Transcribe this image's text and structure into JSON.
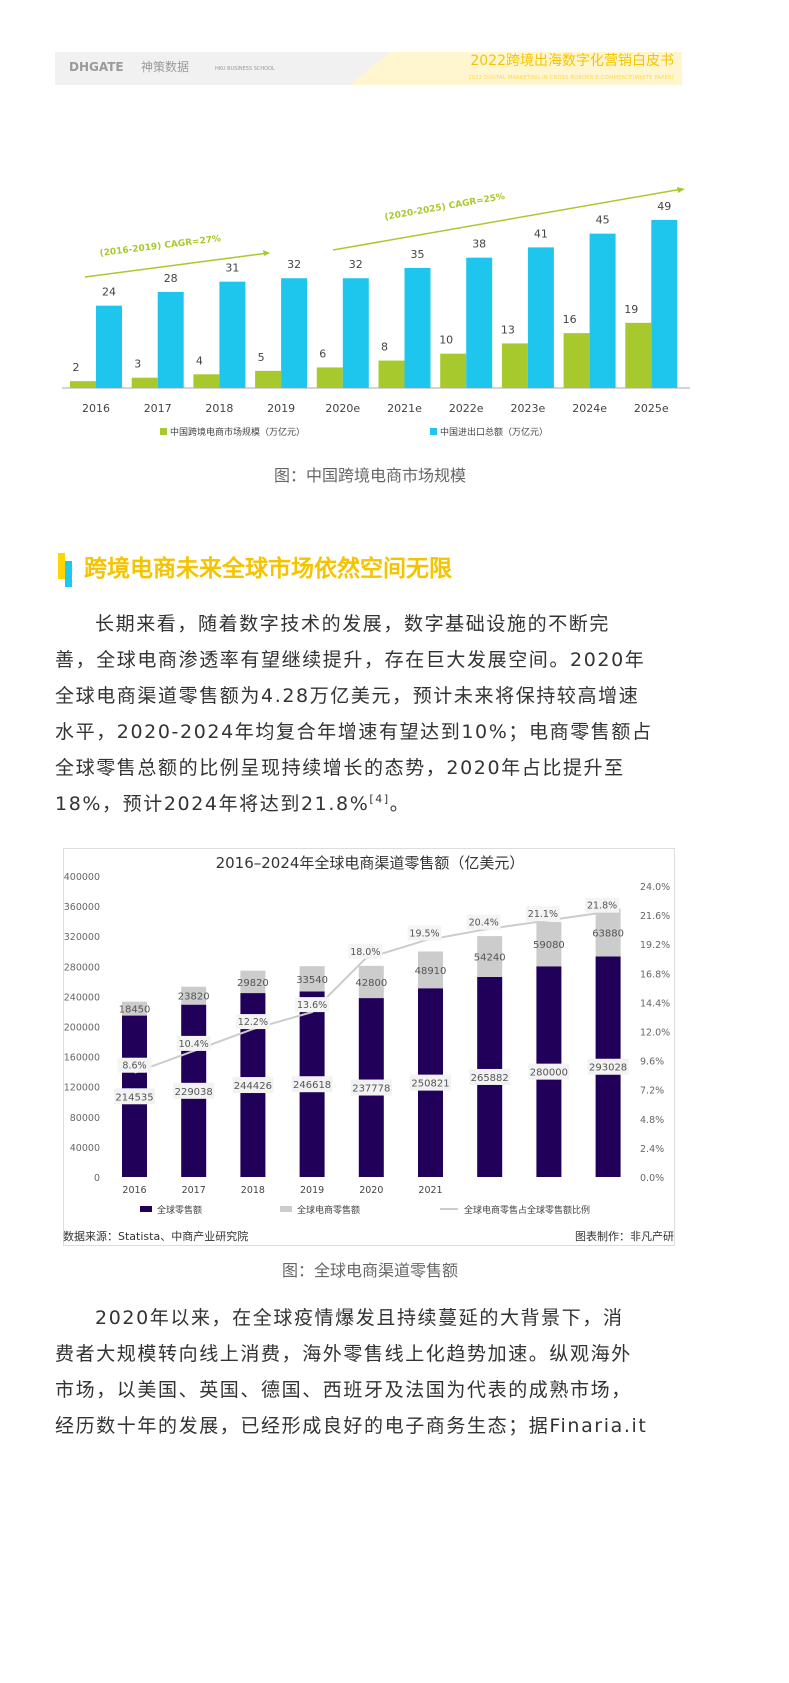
{
  "header": {
    "logos": [
      "DHGATE",
      "神策数据",
      "HKU BUSINESS SCHOOL"
    ],
    "title": "2022跨境出海数字化营销白皮书",
    "subtitle": "2022 DIGITAL MARKETING IN CROSS-BORDER E-COMMERCE(WHITE PAPER)"
  },
  "chart1": {
    "type": "bar",
    "categories": [
      "2016",
      "2017",
      "2018",
      "2019",
      "2020e",
      "2021e",
      "2022e",
      "2023e",
      "2024e",
      "2025e"
    ],
    "series": [
      {
        "name": "中国跨境电商市场规模（万亿元）",
        "values": [
          2,
          3,
          4,
          5,
          6,
          8,
          10,
          13,
          16,
          19
        ],
        "color": "#a8c92e"
      },
      {
        "name": "中国进出口总额（万亿元）",
        "values": [
          24,
          28,
          31,
          32,
          32,
          35,
          38,
          41,
          45,
          49
        ],
        "color": "#1ec6ee"
      }
    ],
    "annotations": [
      "(2016-2019)  CAGR=27%",
      "(2020-2025)  CAGR=25%"
    ],
    "caption": "图：中国跨境电商市场规模"
  },
  "section": {
    "heading": "跨境电商未来全球市场依然空间无限"
  },
  "para1": {
    "lines": [
      "长期来看，随着数字技术的发展，数字基础设施的不断完",
      "善，全球电商渗透率有望继续提升，存在巨大发展空间。2020年",
      "全球电商渠道零售额为4.28万亿美元，预计未来将保持较高增速",
      "水平，2020-2024年均复合年增速有望达到10%；电商零售额占",
      "全球零售总额的比例呈现持续增长的态势，2020年占比提升至"
    ],
    "last_line": "18%，预计2024年将达到21.8%",
    "sup": "[4]",
    "end": "。"
  },
  "chart_data": {
    "type": "bar",
    "title": "2016–2024年全球电商渠道零售额（亿美元）",
    "categories": [
      "2016",
      "2017",
      "2018",
      "2019",
      "2020",
      "2021",
      "",
      "",
      ""
    ],
    "yticks": [
      "0",
      "40000",
      "80000",
      "120000",
      "160000",
      "200000",
      "240000",
      "280000",
      "320000",
      "360000",
      "400000"
    ],
    "ylim": [
      0,
      400000
    ],
    "y2ticks": [
      "0.0%",
      "2.4%",
      "4.8%",
      "7.2%",
      "9.6%",
      "12.0%",
      "14.4%",
      "16.8%",
      "19.2%",
      "21.6%",
      "24.0%"
    ],
    "y2lim": [
      0,
      24
    ],
    "series": [
      {
        "name": "全球零售额",
        "values": [
          214535,
          229038,
          244426,
          246618,
          237778,
          250821,
          265882,
          280000,
          293028
        ],
        "color": "#200058"
      },
      {
        "name": "全球电商零售额",
        "values": [
          18450,
          23820,
          29820,
          33540,
          42800,
          48910,
          54240,
          59080,
          63880
        ],
        "color": "#cccccc"
      },
      {
        "name": "全球电商零售占全球零售额比例",
        "values": [
          8.6,
          10.4,
          12.2,
          13.6,
          18.0,
          19.5,
          20.4,
          21.1,
          21.8
        ],
        "labels": [
          "8.6%",
          "10.4%",
          "12.2%",
          "13.6%",
          "18.0%",
          "19.5%",
          "20.4%",
          "21.1%",
          "21.8%"
        ],
        "color": "#cccccc",
        "type": "line"
      }
    ],
    "legend": "bottom"
  },
  "chart2_meta": {
    "source": "数据来源：Statista、中商产业研究院",
    "maker": "图表制作：非凡产研",
    "caption": "图：全球电商渠道零售额"
  },
  "para2": {
    "lines": [
      "2020年以来，在全球疫情爆发且持续蔓延的大背景下，消",
      "费者大规模转向线上消费，海外零售线上化趋势加速。纵观海外",
      "市场，以美国、英国、德国、西班牙及法国为代表的成熟市场，",
      "经历数十年的发展，已经形成良好的电子商务生态；据Finaria.it"
    ]
  }
}
